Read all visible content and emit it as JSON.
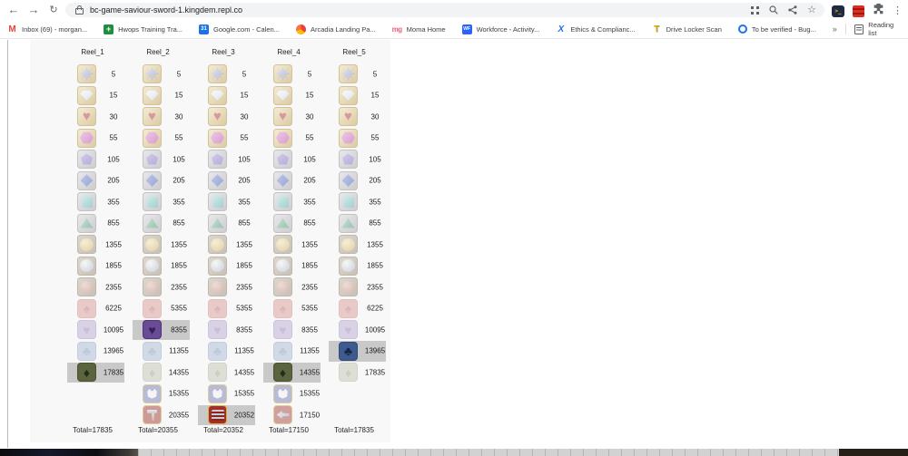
{
  "browser": {
    "url": "bc-game-saviour-sword-1.kingdem.repl.co",
    "overflow_chevron": "»",
    "reading_list_label": "Reading list",
    "bookmarks": [
      {
        "label": "Inbox (69) - morgan...",
        "icon": "gmail"
      },
      {
        "label": "Hwops Training Tra...",
        "icon": "sheets-plus"
      },
      {
        "label": "Google.com - Calen...",
        "icon": "calendar-31"
      },
      {
        "label": "Arcadia Landing Pa...",
        "icon": "pie"
      },
      {
        "label": "Moma Home",
        "icon": "mg-grid"
      },
      {
        "label": "Workforce - Activity...",
        "icon": "wf"
      },
      {
        "label": "Ethics & Complianc...",
        "icon": "x-blue"
      },
      {
        "label": "Drive Locker Scan",
        "icon": "t-colored"
      },
      {
        "label": "To be verified - Bug...",
        "icon": "circle-blue"
      }
    ]
  },
  "reels": [
    {
      "name": "Reel_1",
      "total": "Total=17835",
      "rows": [
        {
          "icon": "gem-star",
          "value": "5",
          "highlighted": false
        },
        {
          "icon": "gem-diamond",
          "value": "15",
          "highlighted": false
        },
        {
          "icon": "gem-heart",
          "value": "30",
          "highlighted": false
        },
        {
          "icon": "gem-hex",
          "value": "55",
          "highlighted": false
        },
        {
          "icon": "gem-pent",
          "value": "105",
          "highlighted": false
        },
        {
          "icon": "gem-rhomb",
          "value": "205",
          "highlighted": false
        },
        {
          "icon": "gem-square",
          "value": "355",
          "highlighted": false
        },
        {
          "icon": "gem-tri",
          "value": "855",
          "highlighted": false
        },
        {
          "icon": "coin-gold",
          "value": "1355",
          "highlighted": false
        },
        {
          "icon": "coin-silver",
          "value": "1855",
          "highlighted": false
        },
        {
          "icon": "coin-copper",
          "value": "2355",
          "highlighted": false
        },
        {
          "icon": "suit-spade",
          "value": "6225",
          "highlighted": false
        },
        {
          "icon": "suit-heart",
          "value": "10095",
          "highlighted": false
        },
        {
          "icon": "suit-club",
          "value": "13965",
          "highlighted": false
        },
        {
          "icon": "suit-diamond",
          "value": "17835",
          "highlighted": true
        }
      ]
    },
    {
      "name": "Reel_2",
      "total": "Total=20355",
      "rows": [
        {
          "icon": "gem-star",
          "value": "5",
          "highlighted": false
        },
        {
          "icon": "gem-diamond",
          "value": "15",
          "highlighted": false
        },
        {
          "icon": "gem-heart",
          "value": "30",
          "highlighted": false
        },
        {
          "icon": "gem-hex",
          "value": "55",
          "highlighted": false
        },
        {
          "icon": "gem-pent",
          "value": "105",
          "highlighted": false
        },
        {
          "icon": "gem-rhomb",
          "value": "205",
          "highlighted": false
        },
        {
          "icon": "gem-square",
          "value": "355",
          "highlighted": false
        },
        {
          "icon": "gem-tri",
          "value": "855",
          "highlighted": false
        },
        {
          "icon": "coin-gold",
          "value": "1355",
          "highlighted": false
        },
        {
          "icon": "coin-silver",
          "value": "1855",
          "highlighted": false
        },
        {
          "icon": "coin-copper",
          "value": "2355",
          "highlighted": false
        },
        {
          "icon": "suit-spade",
          "value": "5355",
          "highlighted": false
        },
        {
          "icon": "suit-heart",
          "value": "8355",
          "highlighted": true
        },
        {
          "icon": "suit-club",
          "value": "11355",
          "highlighted": false
        },
        {
          "icon": "suit-diamond",
          "value": "14355",
          "highlighted": false
        },
        {
          "icon": "cat",
          "value": "15355",
          "highlighted": false
        },
        {
          "icon": "hammer",
          "value": "20355",
          "highlighted": false
        }
      ]
    },
    {
      "name": "Reel_3",
      "total": "Total=20352",
      "rows": [
        {
          "icon": "gem-star",
          "value": "5",
          "highlighted": false
        },
        {
          "icon": "gem-diamond",
          "value": "15",
          "highlighted": false
        },
        {
          "icon": "gem-heart",
          "value": "30",
          "highlighted": false
        },
        {
          "icon": "gem-hex",
          "value": "55",
          "highlighted": false
        },
        {
          "icon": "gem-pent",
          "value": "105",
          "highlighted": false
        },
        {
          "icon": "gem-rhomb",
          "value": "205",
          "highlighted": false
        },
        {
          "icon": "gem-square",
          "value": "355",
          "highlighted": false
        },
        {
          "icon": "gem-tri",
          "value": "855",
          "highlighted": false
        },
        {
          "icon": "coin-gold",
          "value": "1355",
          "highlighted": false
        },
        {
          "icon": "coin-silver",
          "value": "1855",
          "highlighted": false
        },
        {
          "icon": "coin-copper",
          "value": "2355",
          "highlighted": false
        },
        {
          "icon": "suit-spade",
          "value": "5355",
          "highlighted": false
        },
        {
          "icon": "suit-heart",
          "value": "8355",
          "highlighted": false
        },
        {
          "icon": "suit-club",
          "value": "11355",
          "highlighted": false
        },
        {
          "icon": "suit-diamond",
          "value": "14355",
          "highlighted": false
        },
        {
          "icon": "cat",
          "value": "15355",
          "highlighted": false
        },
        {
          "icon": "shield",
          "value": "20352",
          "highlighted": true
        }
      ]
    },
    {
      "name": "Reel_4",
      "total": "Total=17150",
      "rows": [
        {
          "icon": "gem-star",
          "value": "5",
          "highlighted": false
        },
        {
          "icon": "gem-diamond",
          "value": "15",
          "highlighted": false
        },
        {
          "icon": "gem-heart",
          "value": "30",
          "highlighted": false
        },
        {
          "icon": "gem-hex",
          "value": "55",
          "highlighted": false
        },
        {
          "icon": "gem-pent",
          "value": "105",
          "highlighted": false
        },
        {
          "icon": "gem-rhomb",
          "value": "205",
          "highlighted": false
        },
        {
          "icon": "gem-square",
          "value": "355",
          "highlighted": false
        },
        {
          "icon": "gem-tri",
          "value": "855",
          "highlighted": false
        },
        {
          "icon": "coin-gold",
          "value": "1355",
          "highlighted": false
        },
        {
          "icon": "coin-silver",
          "value": "1855",
          "highlighted": false
        },
        {
          "icon": "coin-copper",
          "value": "2355",
          "highlighted": false
        },
        {
          "icon": "suit-spade",
          "value": "5355",
          "highlighted": false
        },
        {
          "icon": "suit-heart",
          "value": "8355",
          "highlighted": false
        },
        {
          "icon": "suit-club",
          "value": "11355",
          "highlighted": false
        },
        {
          "icon": "suit-diamond",
          "value": "14355",
          "highlighted": true
        },
        {
          "icon": "cat",
          "value": "15355",
          "highlighted": false
        },
        {
          "icon": "axe",
          "value": "17150",
          "highlighted": false
        }
      ]
    },
    {
      "name": "Reel_5",
      "total": "Total=17835",
      "rows": [
        {
          "icon": "gem-star",
          "value": "5",
          "highlighted": false
        },
        {
          "icon": "gem-diamond",
          "value": "15",
          "highlighted": false
        },
        {
          "icon": "gem-heart",
          "value": "30",
          "highlighted": false
        },
        {
          "icon": "gem-hex",
          "value": "55",
          "highlighted": false
        },
        {
          "icon": "gem-pent",
          "value": "105",
          "highlighted": false
        },
        {
          "icon": "gem-rhomb",
          "value": "205",
          "highlighted": false
        },
        {
          "icon": "gem-square",
          "value": "355",
          "highlighted": false
        },
        {
          "icon": "gem-tri",
          "value": "855",
          "highlighted": false
        },
        {
          "icon": "coin-gold",
          "value": "1355",
          "highlighted": false
        },
        {
          "icon": "coin-silver",
          "value": "1855",
          "highlighted": false
        },
        {
          "icon": "coin-copper",
          "value": "2355",
          "highlighted": false
        },
        {
          "icon": "suit-spade",
          "value": "6225",
          "highlighted": false
        },
        {
          "icon": "suit-heart",
          "value": "10095",
          "highlighted": false
        },
        {
          "icon": "suit-club",
          "value": "13965",
          "highlighted": true
        },
        {
          "icon": "suit-diamond",
          "value": "17835",
          "highlighted": false
        }
      ]
    }
  ]
}
